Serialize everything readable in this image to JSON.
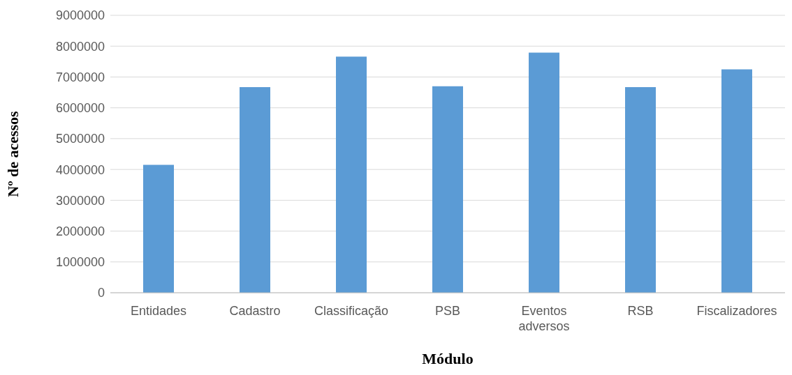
{
  "chart_data": {
    "type": "bar",
    "xlabel": "Módulo",
    "ylabel": "Nº de acessos",
    "categories": [
      "Entidades",
      "Cadastro",
      "Classificação",
      "PSB",
      "Eventos adversos",
      "RSB",
      "Fiscalizadores"
    ],
    "values": [
      4150000,
      6670000,
      7660000,
      6700000,
      7790000,
      6670000,
      7250000
    ],
    "color": "#5b9bd5",
    "ylim": [
      0,
      9000000
    ],
    "yticks": [
      0,
      1000000,
      2000000,
      3000000,
      4000000,
      5000000,
      6000000,
      7000000,
      8000000,
      9000000
    ],
    "grid": "y"
  }
}
